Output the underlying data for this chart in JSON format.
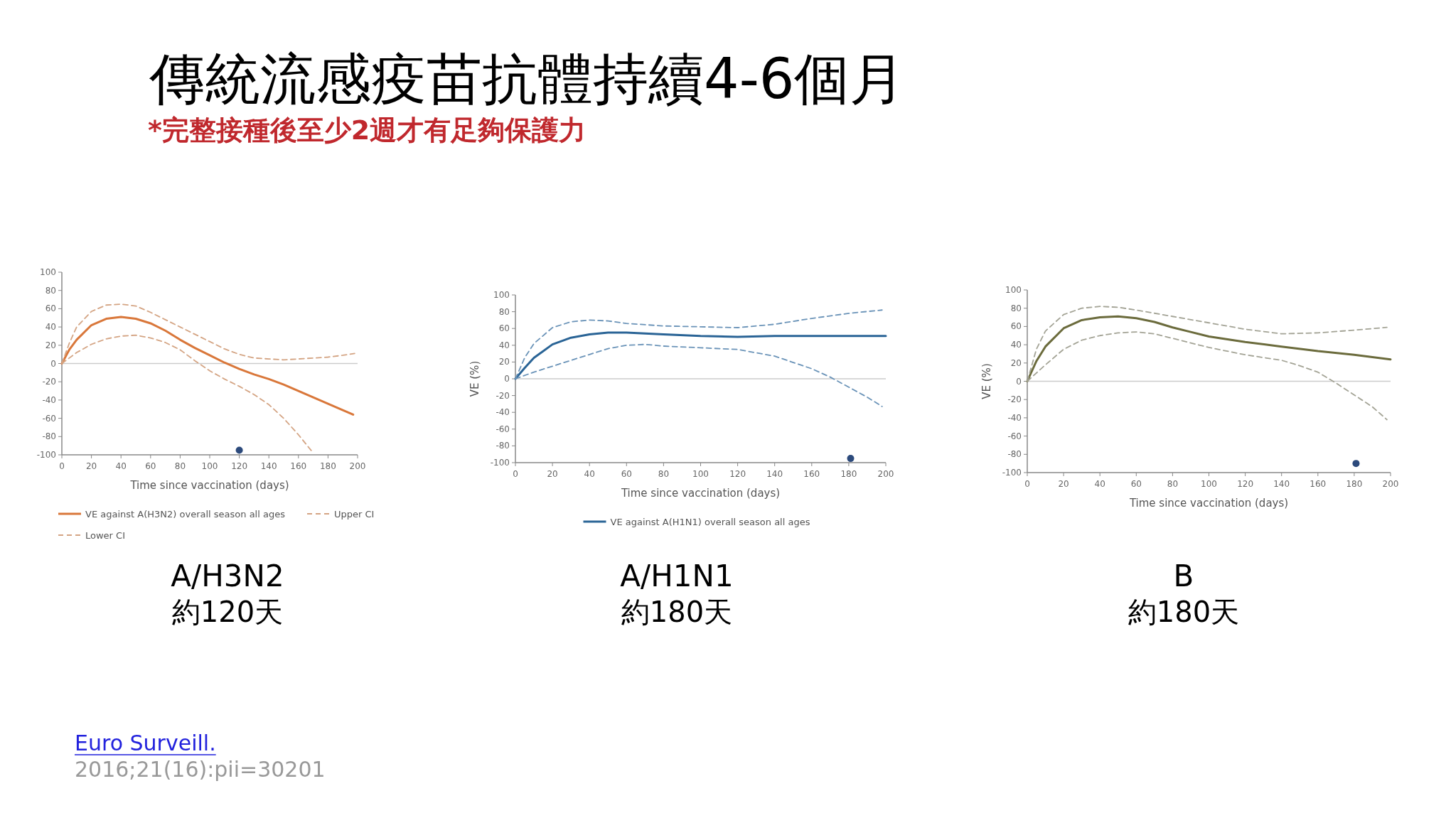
{
  "chart_data": [
    {
      "type": "line",
      "title": "傳統流感疫苗抗體持續4-6個月",
      "subtitle": "*完整接種後至少2週才有足夠保護力",
      "xlabel": "Time since vaccination (days)",
      "xlim": [
        0,
        200
      ],
      "ylim": [
        -100,
        100
      ],
      "xticks": [
        0,
        20,
        40,
        60,
        80,
        100,
        120,
        140,
        160,
        180,
        200
      ],
      "yticks": [
        -100,
        -80,
        -60,
        -40,
        -20,
        0,
        20,
        40,
        60,
        80,
        100
      ],
      "legend": "bottom",
      "ref_lines": [
        {
          "axis": "y",
          "value": 0,
          "color": "#cccccc"
        }
      ],
      "annotations": [
        "A/H3N2",
        "約120天",
        "Euro Surveill.",
        "2016;21(16):pii=30201"
      ],
      "series": [
        {
          "name": "VE against A(H3N2) overall season all ages",
          "color": "#d9773a",
          "line_style": "solid",
          "x": [
            0,
            5,
            10,
            20,
            30,
            40,
            50,
            60,
            70,
            80,
            90,
            100,
            110,
            120,
            130,
            140,
            150,
            160,
            170,
            180,
            190,
            197
          ],
          "values": [
            0,
            15,
            26,
            42,
            49,
            51,
            49,
            44,
            36,
            26,
            17,
            9,
            1,
            -6,
            -12,
            -17,
            -23,
            -30,
            -37,
            -44,
            -51,
            -56
          ]
        },
        {
          "name": "Upper CI",
          "color": "#d4a483",
          "line_style": "dashed",
          "x": [
            0,
            5,
            10,
            20,
            30,
            40,
            50,
            60,
            70,
            80,
            90,
            100,
            110,
            120,
            130,
            140,
            150,
            160,
            170,
            180,
            190,
            198
          ],
          "values": [
            0,
            22,
            40,
            57,
            64,
            65,
            63,
            56,
            48,
            40,
            32,
            24,
            16,
            10,
            6,
            5,
            4,
            5,
            6,
            7,
            9,
            11
          ]
        },
        {
          "name": "Lower CI",
          "color": "#d4a483",
          "line_style": "dashed",
          "x": [
            0,
            10,
            20,
            30,
            40,
            50,
            60,
            70,
            80,
            90,
            100,
            110,
            120,
            130,
            140,
            150,
            160,
            170
          ],
          "values": [
            0,
            12,
            21,
            27,
            30,
            31,
            28,
            23,
            15,
            3,
            -8,
            -17,
            -25,
            -34,
            -45,
            -60,
            -78,
            -98
          ]
        },
        {
          "type": "scatter",
          "color": "#2c4a7c",
          "marker": "circle",
          "x": [
            120
          ],
          "values": [
            -95
          ]
        }
      ]
    },
    {
      "type": "line",
      "xlabel": "Time since vaccination (days)",
      "ylabel": "VE (%)",
      "xlim": [
        0,
        200
      ],
      "ylim": [
        -100,
        100
      ],
      "xticks": [
        0,
        20,
        40,
        60,
        80,
        100,
        120,
        140,
        160,
        180,
        200
      ],
      "yticks": [
        -100,
        -80,
        -60,
        -40,
        -20,
        0,
        20,
        40,
        60,
        80,
        100
      ],
      "legend": "bottom",
      "ref_lines": [
        {
          "axis": "y",
          "value": 0,
          "color": "#cccccc"
        }
      ],
      "annotations": [
        "A/H1N1",
        "約180天"
      ],
      "series": [
        {
          "name": "VE against A(H1N1) overall season all ages",
          "color": "#2a6496",
          "line_style": "solid",
          "x": [
            0,
            5,
            10,
            20,
            30,
            40,
            50,
            60,
            70,
            80,
            100,
            120,
            140,
            160,
            180,
            200
          ],
          "values": [
            0,
            13,
            25,
            41,
            49,
            53,
            55,
            55,
            54,
            53,
            51,
            50,
            51,
            51,
            51,
            51
          ]
        },
        {
          "color": "#6a93b8",
          "line_style": "dashed",
          "x": [
            0,
            5,
            10,
            20,
            30,
            40,
            50,
            60,
            80,
            100,
            120,
            140,
            160,
            180,
            198
          ],
          "values": [
            0,
            25,
            42,
            61,
            68,
            70,
            69,
            66,
            63,
            62,
            61,
            65,
            72,
            78,
            82
          ]
        },
        {
          "color": "#6a93b8",
          "line_style": "dashed",
          "x": [
            0,
            10,
            20,
            30,
            40,
            50,
            60,
            70,
            80,
            100,
            120,
            140,
            160,
            170,
            180,
            190,
            198
          ],
          "values": [
            0,
            8,
            15,
            22,
            29,
            36,
            40,
            41,
            39,
            37,
            35,
            27,
            12,
            2,
            -10,
            -22,
            -33
          ]
        },
        {
          "type": "scatter",
          "color": "#2c4a7c",
          "marker": "circle",
          "x": [
            181
          ],
          "values": [
            -95
          ]
        }
      ]
    },
    {
      "type": "line",
      "xlabel": "Time since vaccination (days)",
      "ylabel": "VE (%)",
      "xlim": [
        0,
        200
      ],
      "ylim": [
        -100,
        100
      ],
      "xticks": [
        0,
        20,
        40,
        60,
        80,
        100,
        120,
        140,
        160,
        180,
        200
      ],
      "yticks": [
        -100,
        -80,
        -60,
        -40,
        -20,
        0,
        20,
        40,
        60,
        80,
        100
      ],
      "ref_lines": [
        {
          "axis": "y",
          "value": 0,
          "color": "#cccccc"
        }
      ],
      "annotations": [
        "B",
        "約180天"
      ],
      "series": [
        {
          "color": "#6b6b3c",
          "line_style": "solid",
          "x": [
            0,
            5,
            10,
            20,
            30,
            40,
            50,
            60,
            70,
            80,
            90,
            100,
            120,
            140,
            160,
            180,
            200
          ],
          "values": [
            0,
            22,
            38,
            58,
            67,
            70,
            71,
            69,
            65,
            59,
            54,
            49,
            43,
            38,
            33,
            29,
            24
          ]
        },
        {
          "color": "#a3a395",
          "line_style": "dashed",
          "x": [
            0,
            5,
            10,
            20,
            30,
            40,
            50,
            60,
            80,
            100,
            120,
            140,
            160,
            180,
            198
          ],
          "values": [
            0,
            35,
            55,
            73,
            80,
            82,
            81,
            78,
            71,
            64,
            57,
            52,
            53,
            56,
            59
          ]
        },
        {
          "color": "#a3a395",
          "line_style": "dashed",
          "x": [
            0,
            10,
            20,
            30,
            40,
            50,
            60,
            70,
            80,
            100,
            120,
            140,
            150,
            160,
            170,
            180,
            190,
            198
          ],
          "values": [
            0,
            18,
            35,
            45,
            50,
            53,
            54,
            52,
            47,
            37,
            29,
            23,
            17,
            10,
            -2,
            -15,
            -28,
            -42
          ]
        },
        {
          "type": "scatter",
          "color": "#2c4a7c",
          "marker": "circle",
          "x": [
            181
          ],
          "values": [
            -90
          ]
        }
      ]
    }
  ]
}
